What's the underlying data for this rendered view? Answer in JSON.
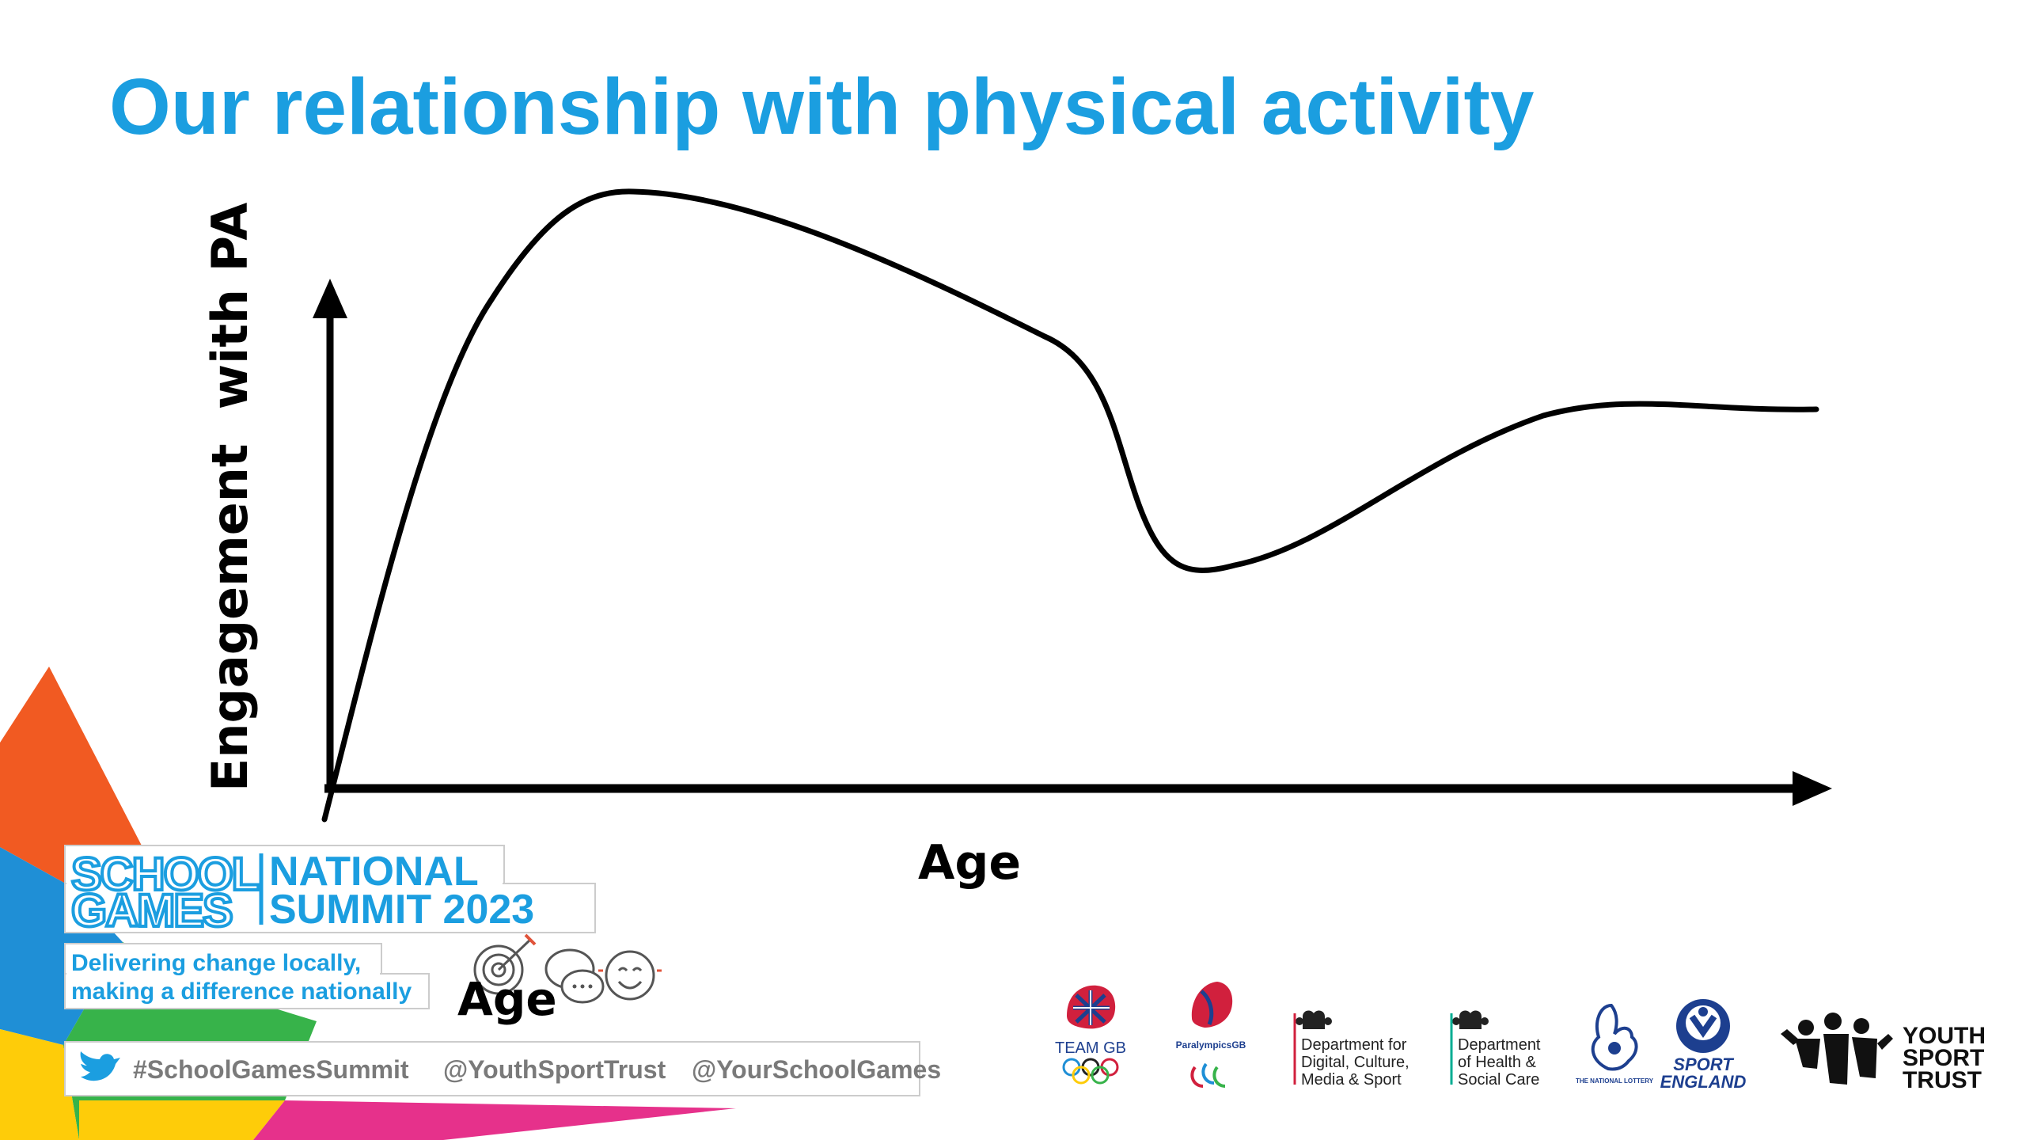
{
  "slide": {
    "title": "Our relationship with physical activity"
  },
  "diagram": {
    "y_axis_label": "Engagement  with PA",
    "x_axis_label": "Age",
    "curve_shape": "rises steeply, peaks, declines, drops sharply, recovers, then plateaus"
  },
  "branding": {
    "event_logo": {
      "line1": "SCHOOL",
      "line2": "GAMES",
      "title_line1": "NATIONAL",
      "title_line2": "SUMMIT 2023"
    },
    "tagline_line1": "Delivering change locally,",
    "tagline_line2": "making a difference nationally",
    "theme_label": "Age",
    "theme_icons": [
      "target-icon",
      "speech-bubbles-icon",
      "smiley-icon"
    ],
    "social": {
      "icon": "twitter-bird-icon",
      "hashtag": "#SchoolGamesSummit",
      "handle1": "@YouthSportTrust",
      "handle2": "@YourSchoolGames"
    }
  },
  "partners": {
    "team_gb": "TEAM GB",
    "paralympics_gb": "ParalympicsGB",
    "dcms_line1": "Department for",
    "dcms_line2": "Digital, Culture,",
    "dcms_line3": "Media & Sport",
    "dhsc_line1": "Department",
    "dhsc_line2": "of Health &",
    "dhsc_line3": "Social Care",
    "lottery": "THE NATIONAL LOTTERY",
    "sport_england_line1": "SPORT",
    "sport_england_line2": "ENGLAND",
    "yst_line1": "YOUTH",
    "yst_line2": "SPORT",
    "yst_line3": "TRUST"
  },
  "colors": {
    "title_blue": "#1b9ee0",
    "orange": "#f15a22",
    "blue": "#1f8fd6",
    "green": "#37b34a",
    "yellow": "#fecc09",
    "pink": "#e6318b",
    "dark_blue": "#1d3f8f",
    "red": "#d1203d"
  }
}
